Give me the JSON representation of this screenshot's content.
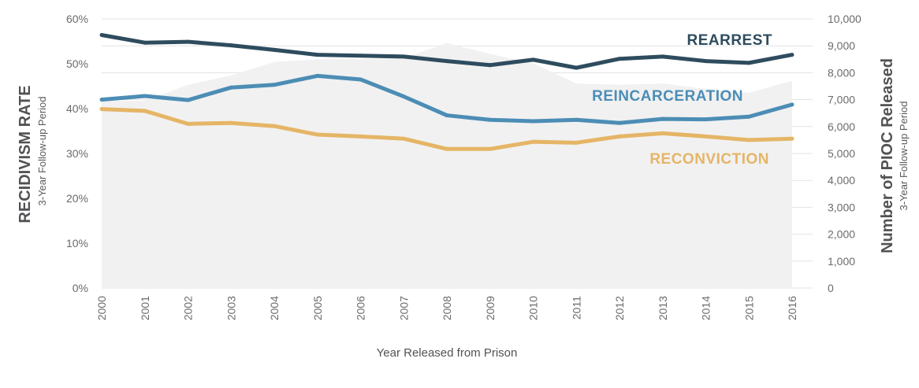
{
  "chart_data": {
    "type": "line",
    "x": [
      "2000",
      "2001",
      "2002",
      "2003",
      "2004",
      "2005",
      "2006",
      "2007",
      "2008",
      "2009",
      "2010",
      "2011",
      "2012",
      "2013",
      "2014",
      "2015",
      "2016"
    ],
    "xlabel": "Year Released from Prison",
    "y_left": {
      "title": "RECIDIVISM RATE",
      "subtitle": "3-Year Follow-up Period",
      "ylim": [
        0,
        60
      ],
      "ticks": [
        0,
        10,
        20,
        30,
        40,
        50,
        60
      ],
      "tick_labels": [
        "0%",
        "10%",
        "20%",
        "30%",
        "40%",
        "50%",
        "60%"
      ]
    },
    "y_right": {
      "title": "Number of PIOC Released",
      "subtitle": "3-Year Follow-up Period",
      "ylim": [
        0,
        10000
      ],
      "ticks": [
        0,
        1000,
        2000,
        3000,
        4000,
        5000,
        6000,
        7000,
        8000,
        9000,
        10000
      ],
      "tick_labels": [
        "0",
        "1,000",
        "2,000",
        "3,000",
        "4,000",
        "5,000",
        "6,000",
        "7,000",
        "8,000",
        "9,000",
        "10,000"
      ]
    },
    "area": {
      "name": "Number of PIOC Released",
      "axis": "right",
      "color": "#f1f1f1",
      "values": [
        6950,
        6950,
        7550,
        7900,
        8400,
        8500,
        8500,
        8550,
        9100,
        8700,
        8350,
        7600,
        7550,
        7600,
        7400,
        7250,
        7700
      ]
    },
    "series": [
      {
        "name": "REARREST",
        "axis": "left",
        "color": "#2e4c5e",
        "values": [
          56.4,
          54.7,
          54.9,
          54.1,
          53.1,
          52.0,
          51.8,
          51.6,
          50.6,
          49.7,
          50.9,
          49.1,
          51.1,
          51.6,
          50.6,
          50.2,
          52.0
        ]
      },
      {
        "name": "REINCARCERATION",
        "axis": "left",
        "color": "#4c8db5",
        "values": [
          42.0,
          42.8,
          41.9,
          44.7,
          45.3,
          47.3,
          46.5,
          42.7,
          38.5,
          37.5,
          37.2,
          37.5,
          36.8,
          37.7,
          37.6,
          38.2,
          40.9
        ]
      },
      {
        "name": "RECONVICTION",
        "axis": "left",
        "color": "#e5b566",
        "values": [
          39.9,
          39.5,
          36.6,
          36.8,
          36.1,
          34.2,
          33.8,
          33.3,
          31.0,
          31.0,
          32.6,
          32.4,
          33.8,
          34.5,
          33.8,
          33.0,
          33.3
        ]
      }
    ]
  }
}
